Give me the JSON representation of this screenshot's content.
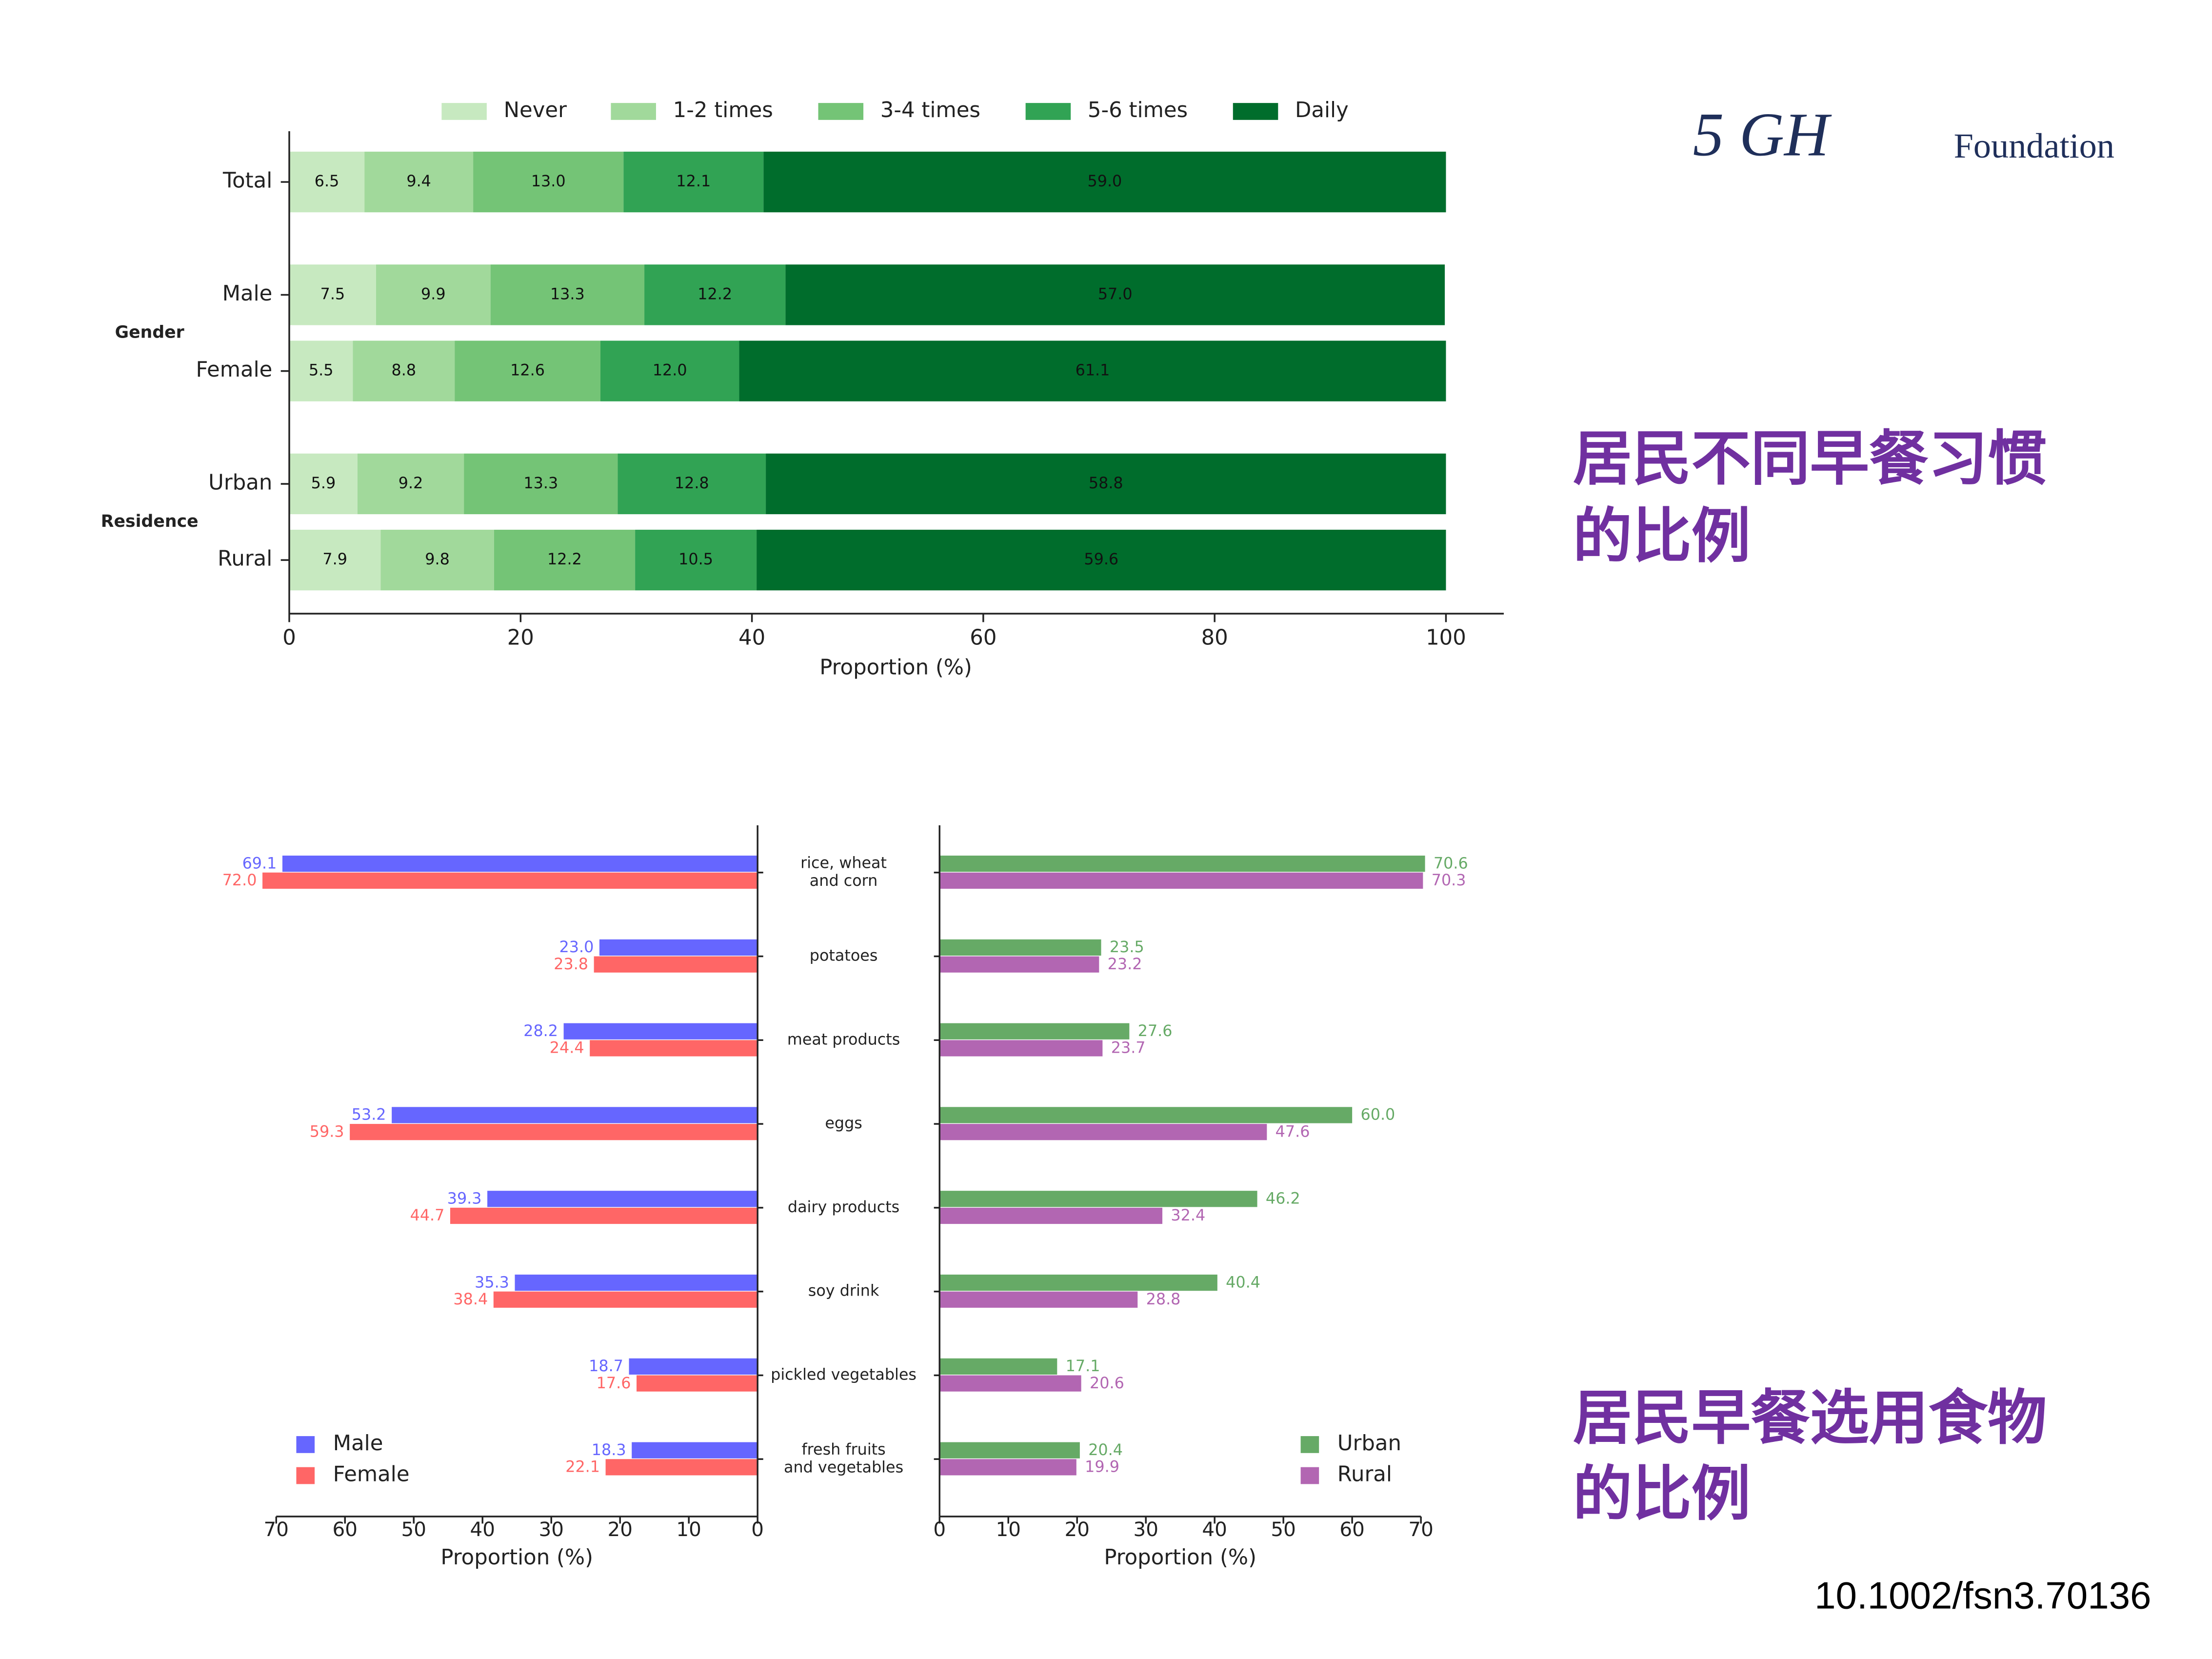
{
  "logo": {
    "mark": "5 GH",
    "name": "Foundation"
  },
  "captions": [
    [
      "居民不同早餐习惯",
      "的比例"
    ],
    [
      "居民早餐选用食物",
      "的比例"
    ]
  ],
  "doi": "10.1002/fsn3.70136",
  "chart_data": [
    {
      "type": "bar",
      "orientation": "horizontal",
      "stacked": true,
      "categories": [
        "Total",
        "Male",
        "Female",
        "Urban",
        "Rural"
      ],
      "groups": [
        {
          "label": "Gender",
          "categories": [
            "Male",
            "Female"
          ]
        },
        {
          "label": "Residence",
          "categories": [
            "Urban",
            "Rural"
          ]
        }
      ],
      "series": [
        {
          "name": "Never",
          "color": "#c7e9c0",
          "values": [
            6.5,
            7.5,
            5.5,
            5.9,
            7.9
          ],
          "value_labels": [
            "6.5",
            "7.5",
            "5.5",
            "5.9",
            "7.9"
          ]
        },
        {
          "name": "1-2 times",
          "color": "#a1d99b",
          "values": [
            9.4,
            9.9,
            8.8,
            9.2,
            9.8
          ],
          "value_labels": [
            "9.4",
            "9.9",
            "8.8",
            "9.2",
            "9.8"
          ]
        },
        {
          "name": "3-4 times",
          "color": "#74c476",
          "values": [
            13.0,
            13.3,
            12.6,
            13.3,
            12.2
          ],
          "value_labels": [
            "13.0",
            "13.3",
            "12.6",
            "13.3",
            "12.2"
          ]
        },
        {
          "name": "5-6 times",
          "color": "#31a354",
          "values": [
            12.1,
            12.2,
            12.0,
            12.8,
            10.5
          ],
          "value_labels": [
            "12.1",
            "12.2",
            "12.0",
            "12.8",
            "10.5"
          ]
        },
        {
          "name": "Daily",
          "color": "#006d2c",
          "values": [
            59.0,
            57.0,
            61.1,
            58.8,
            59.6
          ],
          "value_labels": [
            "59.0",
            "57.0",
            "61.1",
            "58.8",
            "59.6"
          ]
        }
      ],
      "xlim": [
        0,
        100
      ],
      "xticks": [
        0,
        20,
        40,
        60,
        80,
        100
      ],
      "xlabel": "Proportion (%)",
      "legend": "top"
    },
    {
      "type": "butterfly",
      "categories": [
        "rice, wheat\nand corn",
        "potatoes",
        "meat products",
        "eggs",
        "dairy products",
        "soy drink",
        "pickled vegetables",
        "fresh fruits\nand vegetables"
      ],
      "left": {
        "xlim": [
          72,
          0
        ],
        "xticks": [
          70,
          60,
          50,
          40,
          30,
          20,
          10,
          0
        ],
        "xlabel": "Proportion (%)",
        "legend": "lower left",
        "series": [
          {
            "name": "Male",
            "color": "#6666ff",
            "values": [
              69.1,
              23.0,
              28.2,
              53.2,
              39.3,
              35.3,
              18.7,
              18.3
            ],
            "value_labels": [
              "69.1",
              "23.0",
              "28.2",
              "53.2",
              "39.3",
              "35.3",
              "18.7",
              "18.3"
            ]
          },
          {
            "name": "Female",
            "color": "#ff6666",
            "values": [
              72.0,
              23.8,
              24.4,
              59.3,
              44.7,
              38.4,
              17.6,
              22.1
            ],
            "value_labels": [
              "72.0",
              "23.8",
              "24.4",
              "59.3",
              "44.7",
              "38.4",
              "17.6",
              "22.1"
            ]
          }
        ]
      },
      "right": {
        "xlim": [
          0,
          72
        ],
        "xticks": [
          0,
          10,
          20,
          30,
          40,
          50,
          60,
          70
        ],
        "xlabel": "Proportion (%)",
        "legend": "lower right",
        "series": [
          {
            "name": "Urban",
            "color": "#66aa66",
            "values": [
              70.6,
              23.5,
              27.6,
              60.0,
              46.2,
              40.4,
              17.1,
              20.4
            ],
            "value_labels": [
              "70.6",
              "23.5",
              "27.6",
              "60.0",
              "46.2",
              "40.4",
              "17.1",
              "20.4"
            ]
          },
          {
            "name": "Rural",
            "color": "#b266b2",
            "values": [
              70.3,
              23.2,
              23.7,
              47.6,
              32.4,
              28.8,
              20.6,
              19.9
            ],
            "value_labels": [
              "70.3",
              "23.2",
              "23.7",
              "47.6",
              "32.4",
              "28.8",
              "20.6",
              "19.9"
            ]
          }
        ]
      }
    }
  ]
}
